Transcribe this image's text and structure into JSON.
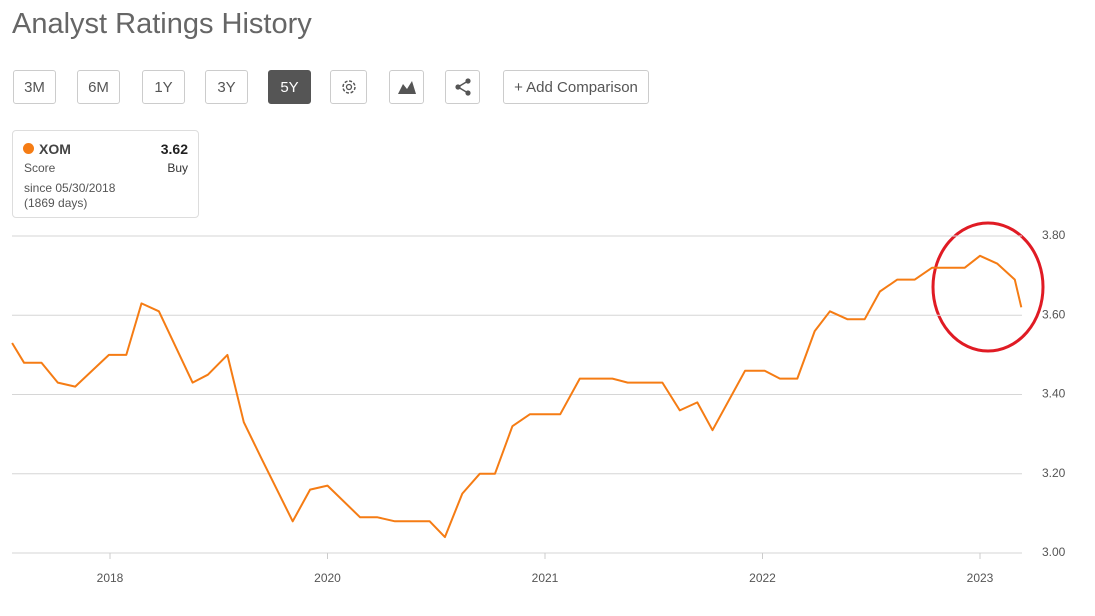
{
  "header": {
    "title": "Analyst Ratings History"
  },
  "toolbar": {
    "ranges": [
      "3M",
      "6M",
      "1Y",
      "3Y",
      "5Y"
    ],
    "active_range": 4,
    "add_comparison": "+ Add Comparison"
  },
  "legend": {
    "value": 3.62,
    "label": "Score",
    "rating": "Buy",
    "since": "since 05/30/2018",
    "days": "(1869 days)"
  },
  "chart_data": {
    "type": "line",
    "x": [
      2017.1,
      2017.21,
      2017.37,
      2017.52,
      2017.68,
      2017.99,
      2018.15,
      2018.29,
      2018.45,
      2018.76,
      2018.9,
      2019.08,
      2019.23,
      2019.39,
      2019.68,
      2019.84,
      2020.0,
      2020.15,
      2020.23,
      2020.31,
      2020.47,
      2020.54,
      2020.62,
      2020.7,
      2020.77,
      2020.85,
      2020.93,
      2021.07,
      2021.16,
      2021.31,
      2021.38,
      2021.54,
      2021.62,
      2021.7,
      2021.77,
      2021.92,
      2022.01,
      2022.08,
      2022.16,
      2022.24,
      2022.31,
      2022.39,
      2022.47,
      2022.54,
      2022.62,
      2022.7,
      2022.78,
      2022.93,
      2023.0,
      2023.08,
      2023.16,
      2023.19
    ],
    "series": [
      {
        "name": "XOM",
        "color": "#f57c14",
        "values": [
          3.53,
          3.48,
          3.48,
          3.43,
          3.42,
          3.5,
          3.5,
          3.63,
          3.61,
          3.43,
          3.45,
          3.5,
          3.33,
          3.24,
          3.08,
          3.16,
          3.17,
          3.09,
          3.09,
          3.08,
          3.08,
          3.04,
          3.15,
          3.2,
          3.2,
          3.32,
          3.35,
          3.35,
          3.44,
          3.44,
          3.43,
          3.43,
          3.36,
          3.38,
          3.31,
          3.46,
          3.46,
          3.44,
          3.44,
          3.56,
          3.61,
          3.59,
          3.59,
          3.66,
          3.69,
          3.69,
          3.72,
          3.72,
          3.75,
          3.73,
          3.69,
          3.62
        ]
      }
    ],
    "xlim": [
      2017.1,
      2023.19
    ],
    "xticks": [
      2018,
      2020,
      2021,
      2022,
      2023
    ],
    "ylim": [
      3,
      3.8
    ],
    "yticks": [
      {
        "value": 3,
        "label": "3.00"
      },
      {
        "value": 3.2,
        "label": "3.20"
      },
      {
        "value": 3.4,
        "label": "3.40"
      },
      {
        "value": 3.6,
        "label": "3.60"
      },
      {
        "value": 3.8,
        "label": "3.80"
      }
    ],
    "grid": true
  }
}
